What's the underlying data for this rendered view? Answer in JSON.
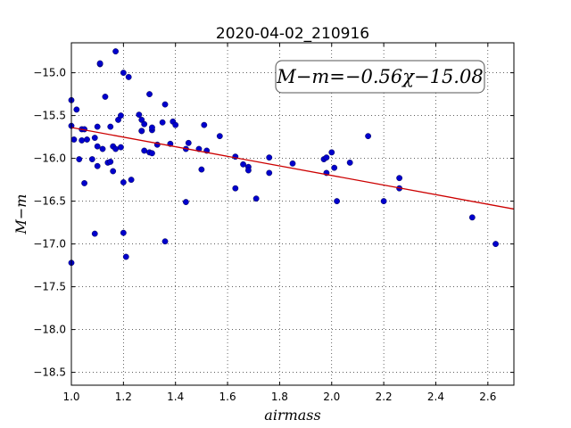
{
  "chart_data": {
    "type": "scatter",
    "title": "2020-04-02_210916",
    "xlabel": "airmass",
    "ylabel": "M−m",
    "xlim": [
      1.0,
      2.7
    ],
    "ylim": [
      -18.65,
      -14.65
    ],
    "y_inverted": true,
    "grid": true,
    "x_ticks": [
      "1.0",
      "1.2",
      "1.4",
      "1.6",
      "1.8",
      "2.0",
      "2.2",
      "2.4",
      "2.6"
    ],
    "y_ticks": [
      "−15.0",
      "−15.5",
      "−16.0",
      "−16.5",
      "−17.0",
      "−17.5",
      "−18.0",
      "−18.5"
    ],
    "annotation": "M−m=−0.56χ−15.08",
    "fit": {
      "slope": -0.56,
      "intercept": -15.08,
      "color": "#cc0000"
    },
    "point_color": "#0000cc",
    "x": [
      1.0,
      1.01,
      1.02,
      1.03,
      1.04,
      1.04,
      1.05,
      1.06,
      1.05,
      1.08,
      1.09,
      1.09,
      1.1,
      1.1,
      1.1,
      1.11,
      1.11,
      1.12,
      1.13,
      1.14,
      1.15,
      1.15,
      1.16,
      1.16,
      1.17,
      1.17,
      1.18,
      1.19,
      1.19,
      1.2,
      1.2,
      1.2,
      1.21,
      1.22,
      1.23,
      1.26,
      1.27,
      1.27,
      1.27,
      1.28,
      1.28,
      1.3,
      1.3,
      1.31,
      1.31,
      1.31,
      1.33,
      1.35,
      1.36,
      1.36,
      1.38,
      1.39,
      1.4,
      1.44,
      1.44,
      1.45,
      1.49,
      1.5,
      1.51,
      1.52,
      1.57,
      1.63,
      1.63,
      1.66,
      1.68,
      1.68,
      1.71,
      1.76,
      1.76,
      1.85,
      1.97,
      1.98,
      1.98,
      2.0,
      2.01,
      2.02,
      2.07,
      2.14,
      2.2,
      2.26,
      2.26,
      2.54,
      2.63,
      1.0,
      1.0
    ],
    "y": [
      -15.32,
      -15.78,
      -15.43,
      -16.01,
      -15.79,
      -15.66,
      -16.29,
      -15.78,
      -15.66,
      -16.01,
      -15.76,
      -16.88,
      -15.86,
      -16.09,
      -15.63,
      -14.9,
      -14.89,
      -15.89,
      -15.28,
      -16.05,
      -16.04,
      -15.63,
      -16.15,
      -15.86,
      -14.75,
      -15.89,
      -15.55,
      -15.87,
      -15.5,
      -15.0,
      -16.28,
      -16.87,
      -17.15,
      -15.05,
      -16.25,
      -15.49,
      -15.55,
      -15.68,
      -15.68,
      -15.6,
      -15.91,
      -15.25,
      -15.93,
      -15.94,
      -15.67,
      -15.64,
      -15.84,
      -15.58,
      -15.37,
      -16.97,
      -15.83,
      -15.57,
      -15.61,
      -15.89,
      -16.51,
      -15.82,
      -15.89,
      -16.13,
      -15.61,
      -15.91,
      -15.74,
      -15.98,
      -16.35,
      -16.07,
      -16.1,
      -16.14,
      -16.47,
      -16.17,
      -15.99,
      -16.06,
      -16.01,
      -16.17,
      -15.99,
      -15.93,
      -16.11,
      -16.5,
      -16.05,
      -15.74,
      -16.5,
      -16.23,
      -16.35,
      -16.69,
      -17.0,
      -17.22,
      -15.62
    ]
  }
}
